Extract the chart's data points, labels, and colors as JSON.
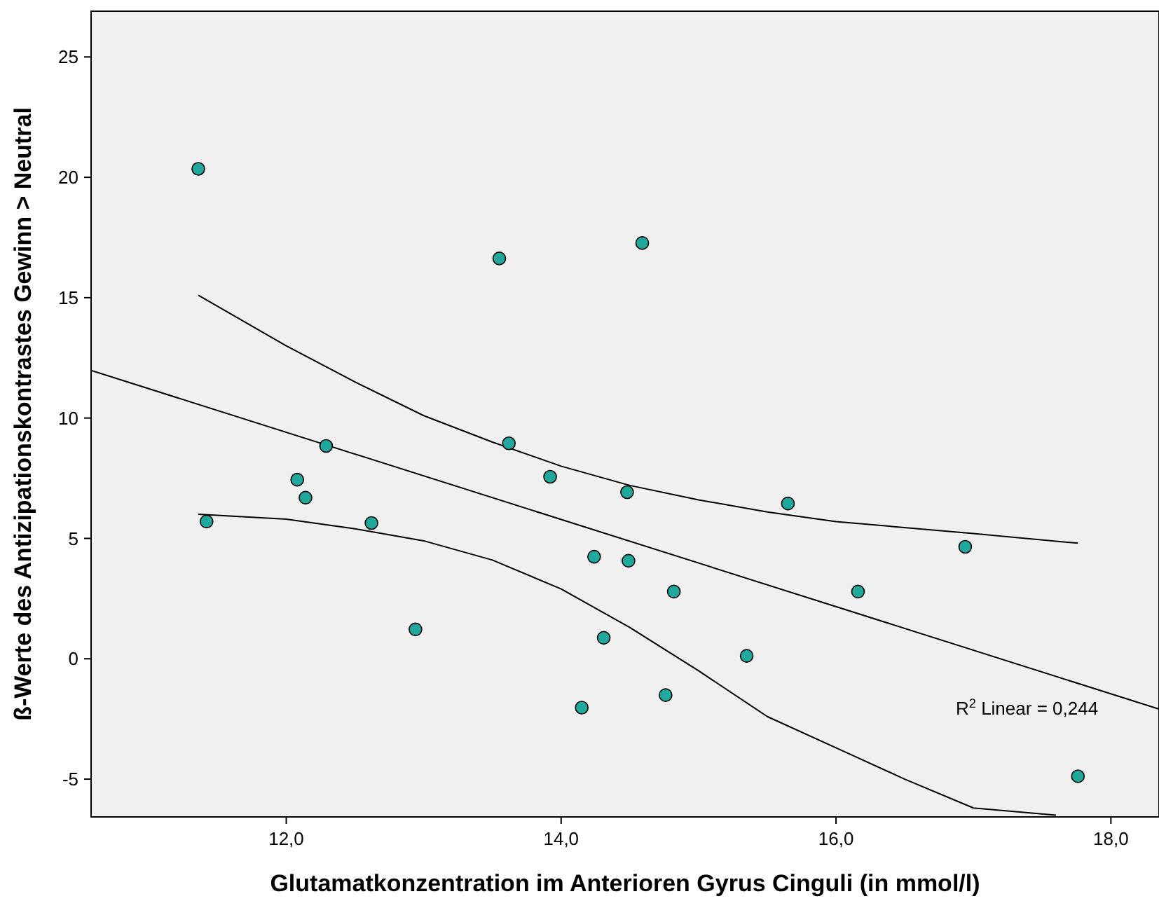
{
  "chart_data": {
    "type": "scatter",
    "xlabel": "Glutamatkonzentration im Anterioren Gyrus Cinguli (in mmol/l)",
    "ylabel": "ß-Werte des Antizipationskontrastes Gewinn > Neutral",
    "xlim": [
      10.58,
      18.35
    ],
    "ylim": [
      -6.57,
      26.9
    ],
    "xticks": [
      {
        "value": 12,
        "label": "12,0"
      },
      {
        "value": 14,
        "label": "14,0"
      },
      {
        "value": 16,
        "label": "16,0"
      },
      {
        "value": 18,
        "label": "18,0"
      }
    ],
    "yticks": [
      -5,
      0,
      5,
      10,
      15,
      20,
      25
    ],
    "grid": false,
    "annotations": [
      "R$^{2}$ Linear = 0,244"
    ],
    "series": [
      {
        "marker": "circle",
        "color": "#1fa89b",
        "x": [
          11.36,
          11.42,
          12.08,
          12.14,
          12.29,
          12.62,
          12.94,
          13.55,
          13.62,
          13.92,
          14.15,
          14.24,
          14.31,
          14.48,
          14.49,
          14.59,
          14.76,
          14.82,
          15.35,
          15.65,
          16.16,
          16.94,
          17.76
        ],
        "values": [
          20.35,
          5.7,
          7.44,
          6.69,
          8.84,
          5.64,
          1.22,
          16.63,
          8.95,
          7.56,
          -2.03,
          4.24,
          0.87,
          6.92,
          4.07,
          17.27,
          -1.51,
          2.79,
          0.12,
          6.45,
          2.79,
          4.65,
          -4.88
        ]
      },
      {
        "type": "line",
        "marker": "none",
        "color": "#000000",
        "x": [
          10.58,
          18.35
        ],
        "values": [
          11.98,
          -2.09
        ]
      },
      {
        "type": "line",
        "marker": "none",
        "color": "#000000",
        "x": [
          11.36,
          12.0,
          12.5,
          13.0,
          13.5,
          14.0,
          14.5,
          15.0,
          15.5,
          16.0,
          17.0,
          17.76
        ],
        "values": [
          15.1,
          13.0,
          11.5,
          10.1,
          9.0,
          8.0,
          7.2,
          6.6,
          6.1,
          5.7,
          5.2,
          4.8
        ]
      },
      {
        "type": "line",
        "marker": "none",
        "color": "#000000",
        "x": [
          11.36,
          12.0,
          12.5,
          13.0,
          13.5,
          14.0,
          14.5,
          15.0,
          15.5,
          16.0,
          16.5,
          17.0,
          17.6
        ],
        "values": [
          6.0,
          5.8,
          5.4,
          4.9,
          4.1,
          2.9,
          1.3,
          -0.5,
          -2.4,
          -3.7,
          -5.0,
          -6.2,
          -6.5
        ]
      }
    ]
  }
}
